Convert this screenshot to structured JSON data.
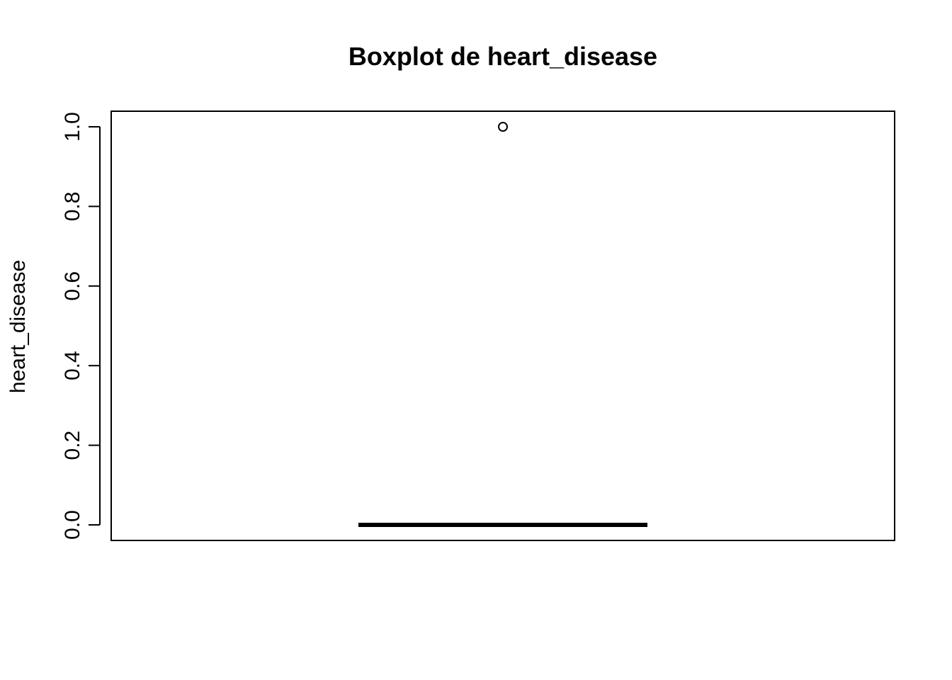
{
  "chart_data": {
    "type": "boxplot",
    "title": "Boxplot de heart_disease",
    "ylabel": "heart_disease",
    "xlabel": "",
    "ylim": [
      0.0,
      1.0
    ],
    "yticks": [
      "0.0",
      "0.2",
      "0.4",
      "0.6",
      "0.8",
      "1.0"
    ],
    "ytick_values": [
      0.0,
      0.2,
      0.4,
      0.6,
      0.8,
      1.0
    ],
    "box": {
      "min": 0.0,
      "q1": 0.0,
      "median": 0.0,
      "q3": 0.0,
      "max": 0.0
    },
    "outliers": [
      1.0
    ],
    "grid": false,
    "colors": {
      "line": "#000000",
      "background": "#ffffff"
    }
  }
}
